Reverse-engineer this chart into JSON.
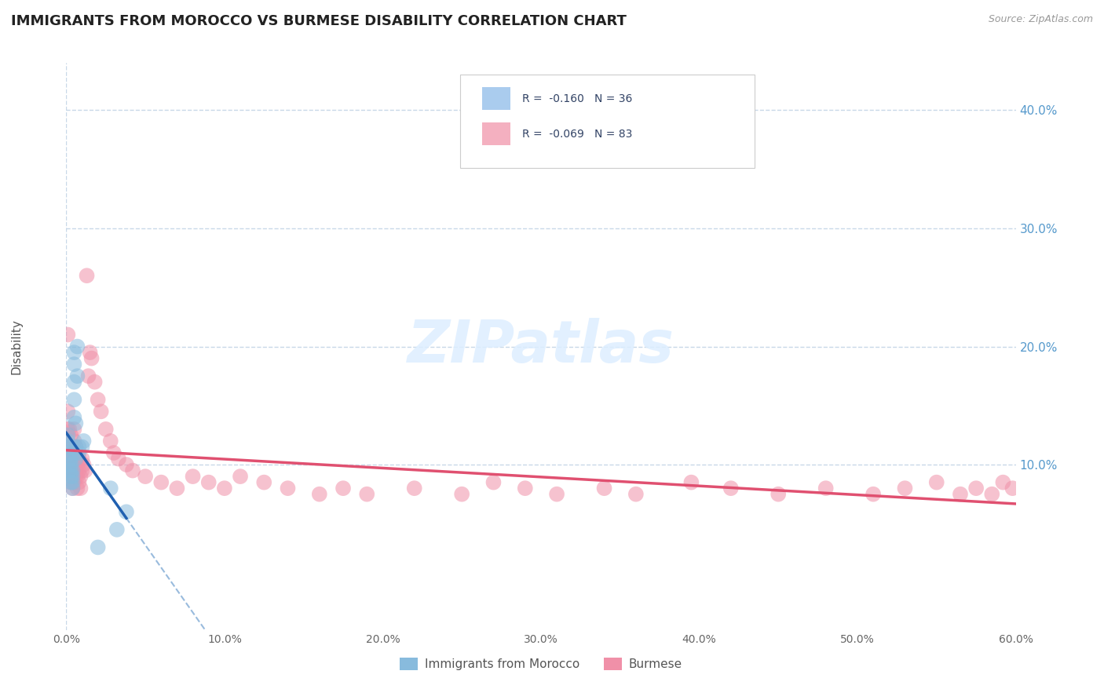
{
  "title": "IMMIGRANTS FROM MOROCCO VS BURMESE DISABILITY CORRELATION CHART",
  "source": "Source: ZipAtlas.com",
  "ylabel": "Disability",
  "watermark": "ZIPatlas",
  "xlim": [
    0.0,
    0.6
  ],
  "ylim": [
    -0.04,
    0.44
  ],
  "xtick_labels": [
    "0.0%",
    "10.0%",
    "20.0%",
    "30.0%",
    "40.0%",
    "50.0%",
    "60.0%"
  ],
  "xtick_vals": [
    0.0,
    0.1,
    0.2,
    0.3,
    0.4,
    0.5,
    0.6
  ],
  "ytick_labels": [
    "10.0%",
    "20.0%",
    "30.0%",
    "40.0%"
  ],
  "ytick_vals": [
    0.1,
    0.2,
    0.3,
    0.4
  ],
  "legend_labels_bottom": [
    "Immigrants from Morocco",
    "Burmese"
  ],
  "morocco_color": "#88bbdd",
  "burmese_color": "#f090a8",
  "morocco_line_color": "#2060b0",
  "burmese_line_color": "#e05070",
  "trend_dash_color": "#99bbdd",
  "legend_rect_morocco": "#aaccee",
  "legend_rect_burmese": "#f4b0c0",
  "legend_text_R1": "R =  -0.160   N = 36",
  "legend_text_R2": "R =  -0.069   N = 83",
  "morocco_scatter_x": [
    0.001,
    0.001,
    0.001,
    0.002,
    0.002,
    0.002,
    0.002,
    0.003,
    0.003,
    0.003,
    0.003,
    0.003,
    0.003,
    0.004,
    0.004,
    0.004,
    0.004,
    0.005,
    0.005,
    0.005,
    0.005,
    0.005,
    0.006,
    0.006,
    0.006,
    0.006,
    0.007,
    0.007,
    0.008,
    0.008,
    0.01,
    0.011,
    0.02,
    0.028,
    0.032,
    0.038
  ],
  "morocco_scatter_y": [
    0.12,
    0.115,
    0.125,
    0.11,
    0.105,
    0.095,
    0.1,
    0.115,
    0.1,
    0.095,
    0.09,
    0.105,
    0.085,
    0.095,
    0.09,
    0.085,
    0.08,
    0.14,
    0.155,
    0.17,
    0.185,
    0.195,
    0.135,
    0.115,
    0.11,
    0.105,
    0.2,
    0.175,
    0.115,
    0.11,
    0.115,
    0.12,
    0.03,
    0.08,
    0.045,
    0.06
  ],
  "burmese_scatter_x": [
    0.001,
    0.001,
    0.001,
    0.002,
    0.002,
    0.002,
    0.002,
    0.003,
    0.003,
    0.003,
    0.003,
    0.003,
    0.004,
    0.004,
    0.004,
    0.004,
    0.004,
    0.005,
    0.005,
    0.005,
    0.005,
    0.005,
    0.005,
    0.006,
    0.006,
    0.006,
    0.006,
    0.007,
    0.007,
    0.007,
    0.008,
    0.008,
    0.008,
    0.009,
    0.009,
    0.01,
    0.01,
    0.011,
    0.012,
    0.013,
    0.014,
    0.015,
    0.016,
    0.018,
    0.02,
    0.022,
    0.025,
    0.028,
    0.03,
    0.033,
    0.038,
    0.042,
    0.05,
    0.06,
    0.07,
    0.08,
    0.09,
    0.1,
    0.11,
    0.125,
    0.14,
    0.16,
    0.175,
    0.19,
    0.22,
    0.25,
    0.27,
    0.29,
    0.31,
    0.34,
    0.36,
    0.395,
    0.42,
    0.45,
    0.48,
    0.51,
    0.53,
    0.55,
    0.565,
    0.575,
    0.585,
    0.592,
    0.598
  ],
  "burmese_scatter_y": [
    0.13,
    0.145,
    0.21,
    0.095,
    0.105,
    0.115,
    0.13,
    0.085,
    0.095,
    0.1,
    0.11,
    0.125,
    0.08,
    0.09,
    0.095,
    0.105,
    0.115,
    0.095,
    0.085,
    0.1,
    0.11,
    0.12,
    0.13,
    0.09,
    0.095,
    0.105,
    0.115,
    0.08,
    0.09,
    0.1,
    0.085,
    0.095,
    0.105,
    0.08,
    0.09,
    0.095,
    0.105,
    0.1,
    0.095,
    0.26,
    0.175,
    0.195,
    0.19,
    0.17,
    0.155,
    0.145,
    0.13,
    0.12,
    0.11,
    0.105,
    0.1,
    0.095,
    0.09,
    0.085,
    0.08,
    0.09,
    0.085,
    0.08,
    0.09,
    0.085,
    0.08,
    0.075,
    0.08,
    0.075,
    0.08,
    0.075,
    0.085,
    0.08,
    0.075,
    0.08,
    0.075,
    0.085,
    0.08,
    0.075,
    0.08,
    0.075,
    0.08,
    0.085,
    0.075,
    0.08,
    0.075,
    0.085,
    0.08
  ],
  "background_color": "#ffffff",
  "grid_color": "#c8d8e8",
  "title_fontsize": 13,
  "tick_fontsize": 10,
  "ylabel_fontsize": 11
}
